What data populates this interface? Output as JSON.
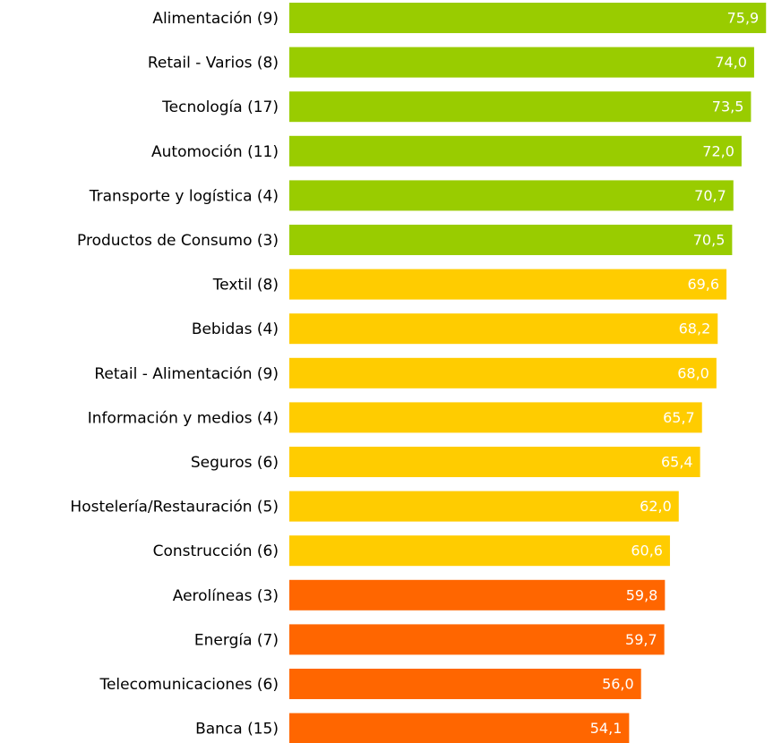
{
  "chart_data": {
    "type": "bar",
    "orientation": "horizontal",
    "categories": [
      "Alimentación (9)",
      "Retail - Varios (8)",
      "Tecnología (17)",
      "Automoción (11)",
      "Transporte y logística (4)",
      "Productos de Consumo (3)",
      "Textil (8)",
      "Bebidas (4)",
      "Retail - Alimentación (9)",
      "Información y medios (4)",
      "Seguros (6)",
      "Hostelería/Restauración (5)",
      "Construcción (6)",
      "Aerolíneas (3)",
      "Energía (7)",
      "Telecomunicaciones (6)",
      "Banca (15)"
    ],
    "values": [
      75.9,
      74.0,
      73.5,
      72.0,
      70.7,
      70.5,
      69.6,
      68.2,
      68.0,
      65.7,
      65.4,
      62.0,
      60.6,
      59.8,
      59.7,
      56.0,
      54.1
    ],
    "value_labels": [
      "75,9",
      "74,0",
      "73,5",
      "72,0",
      "70,7",
      "70,5",
      "69,6",
      "68,2",
      "68,0",
      "65,7",
      "65,4",
      "62,0",
      "60,6",
      "59,8",
      "59,7",
      "56,0",
      "54,1"
    ],
    "colors": [
      "#99cc00",
      "#99cc00",
      "#99cc00",
      "#99cc00",
      "#99cc00",
      "#99cc00",
      "#ffcc00",
      "#ffcc00",
      "#ffcc00",
      "#ffcc00",
      "#ffcc00",
      "#ffcc00",
      "#ffcc00",
      "#ff6600",
      "#ff6600",
      "#ff6600",
      "#ff6600"
    ],
    "xlim": [
      0,
      80
    ]
  }
}
